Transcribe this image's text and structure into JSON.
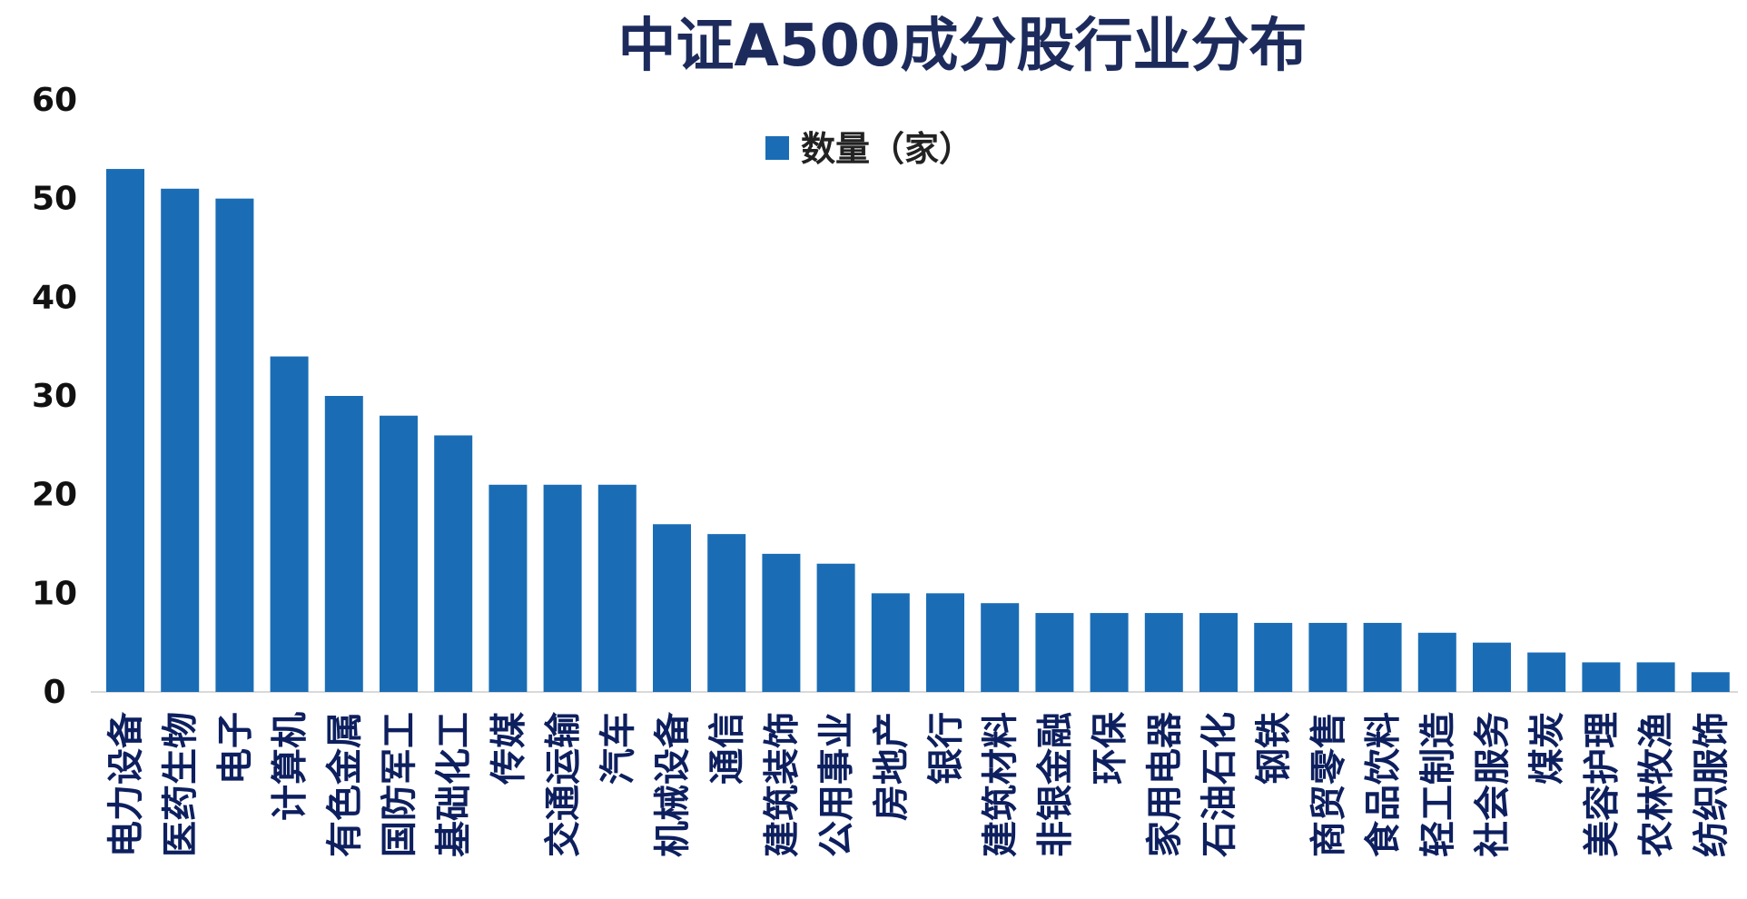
{
  "chart_data": {
    "type": "bar",
    "title": "中证A500成分股行业分布",
    "xlabel": "",
    "ylabel": "",
    "ylim": [
      0,
      60
    ],
    "yticks": [
      0,
      10,
      20,
      30,
      40,
      50,
      60
    ],
    "grid": false,
    "legend_position": "top-center",
    "bar_color": "#1a6db5",
    "categories": [
      "电力设备",
      "医药生物",
      "电子",
      "计算机",
      "有色金属",
      "国防军工",
      "基础化工",
      "传媒",
      "交通运输",
      "汽车",
      "机械设备",
      "通信",
      "建筑装饰",
      "公用事业",
      "房地产",
      "银行",
      "建筑材料",
      "非银金融",
      "环保",
      "家用电器",
      "石油石化",
      "钢铁",
      "商贸零售",
      "食品饮料",
      "轻工制造",
      "社会服务",
      "煤炭",
      "美容护理",
      "农林牧渔",
      "纺织服饰"
    ],
    "series": [
      {
        "name": "数量（家）",
        "values": [
          53,
          51,
          50,
          34,
          30,
          28,
          26,
          21,
          21,
          21,
          17,
          16,
          14,
          13,
          10,
          10,
          9,
          8,
          8,
          8,
          8,
          7,
          7,
          7,
          6,
          5,
          4,
          3,
          3,
          2
        ]
      }
    ]
  }
}
